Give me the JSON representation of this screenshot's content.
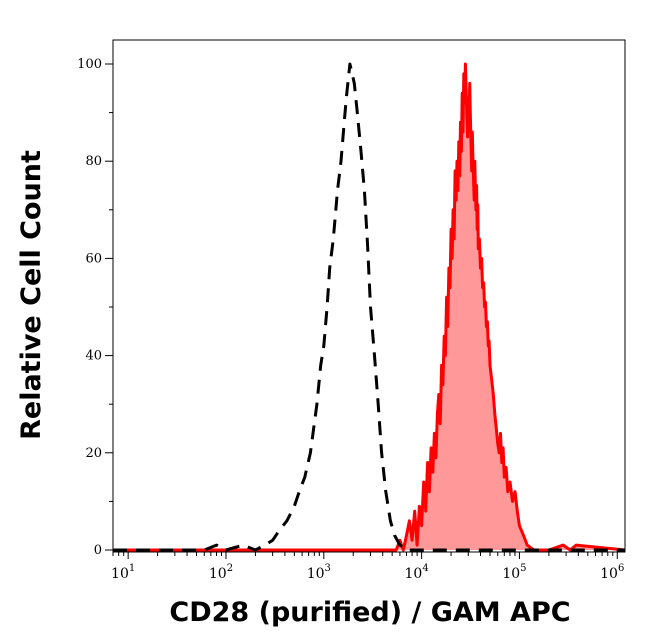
{
  "chart_data": {
    "type": "area",
    "xscale": "log",
    "xlim": [
      7,
      1200000
    ],
    "ylim": [
      0,
      105
    ],
    "xlabel": "CD28 (purified) / GAM APC",
    "ylabel": "Relative Cell Count",
    "xtick_labels": [
      {
        "value": 10,
        "base": "10",
        "exp": "1"
      },
      {
        "value": 100,
        "base": "10",
        "exp": "2"
      },
      {
        "value": 1000,
        "base": "10",
        "exp": "3"
      },
      {
        "value": 10000,
        "base": "10",
        "exp": "4"
      },
      {
        "value": 100000,
        "base": "10",
        "exp": "5"
      },
      {
        "value": 1000000,
        "base": "10",
        "exp": "6"
      }
    ],
    "yticks": [
      0,
      20,
      40,
      60,
      80,
      100
    ],
    "series": [
      {
        "style": "dashed",
        "color": "#000000",
        "fill": "none",
        "x": [
          7,
          60,
          80,
          100,
          150,
          200,
          250,
          300,
          350,
          420,
          500,
          560,
          640,
          730,
          850,
          930,
          1000,
          1080,
          1150,
          1250,
          1380,
          1500,
          1600,
          1700,
          1850,
          1950,
          2050,
          2200,
          2400,
          2600,
          2800,
          3000,
          3300,
          3600,
          3900,
          4300,
          4800,
          5300,
          6000,
          7000,
          10000,
          1200000
        ],
        "y": [
          0,
          0,
          1,
          0,
          1,
          0,
          1,
          2,
          4,
          6,
          9,
          12,
          15,
          20,
          30,
          38,
          42,
          50,
          58,
          64,
          74,
          80,
          87,
          93,
          100,
          98,
          96,
          90,
          82,
          74,
          63,
          50,
          40,
          30,
          20,
          12,
          6,
          3,
          1,
          0,
          0,
          0
        ]
      },
      {
        "style": "solid",
        "color": "#ff0000",
        "fill": "#ff9999",
        "x": [
          7,
          5500,
          6000,
          6500,
          7000,
          7500,
          8000,
          8500,
          9000,
          9500,
          10000,
          10500,
          11000,
          11500,
          12000,
          12500,
          13000,
          13500,
          14000,
          14500,
          15000,
          15500,
          16000,
          16500,
          17000,
          17500,
          18000,
          18500,
          19000,
          19500,
          20000,
          20500,
          21000,
          21500,
          22000,
          22500,
          23000,
          23500,
          24000,
          24500,
          25000,
          25500,
          26000,
          26500,
          27000,
          27500,
          28000,
          28500,
          29000,
          29500,
          30000,
          30500,
          31000,
          31500,
          32000,
          32500,
          33000,
          33500,
          34000,
          34500,
          35000,
          35500,
          36000,
          36500,
          37000,
          37500,
          38000,
          39000,
          40000,
          41000,
          42000,
          43000,
          44000,
          45000,
          46000,
          47000,
          48000,
          49000,
          50000,
          52000,
          54000,
          56000,
          58000,
          60000,
          62000,
          64000,
          66000,
          68000,
          70000,
          73000,
          76000,
          80000,
          85000,
          90000,
          95000,
          100000,
          110000,
          120000,
          140000,
          200000,
          280000,
          330000,
          380000,
          1200000
        ],
        "y": [
          0,
          0,
          2,
          0,
          3,
          6,
          2,
          8,
          1,
          9,
          5,
          14,
          8,
          18,
          12,
          21,
          16,
          24,
          19,
          28,
          32,
          26,
          38,
          34,
          44,
          40,
          52,
          46,
          58,
          54,
          66,
          60,
          70,
          64,
          78,
          72,
          80,
          74,
          84,
          77,
          88,
          82,
          94,
          86,
          98,
          92,
          100,
          95,
          90,
          85,
          93,
          87,
          96,
          89,
          84,
          78,
          86,
          80,
          76,
          72,
          80,
          74,
          70,
          75,
          66,
          71,
          62,
          64,
          58,
          60,
          54,
          55,
          50,
          51,
          46,
          47,
          42,
          43,
          38,
          35,
          32,
          28,
          25,
          22,
          20,
          24,
          18,
          21,
          15,
          17,
          12,
          14,
          10,
          12,
          8,
          5,
          3,
          1,
          0,
          0,
          1,
          0,
          1,
          0
        ]
      }
    ]
  }
}
